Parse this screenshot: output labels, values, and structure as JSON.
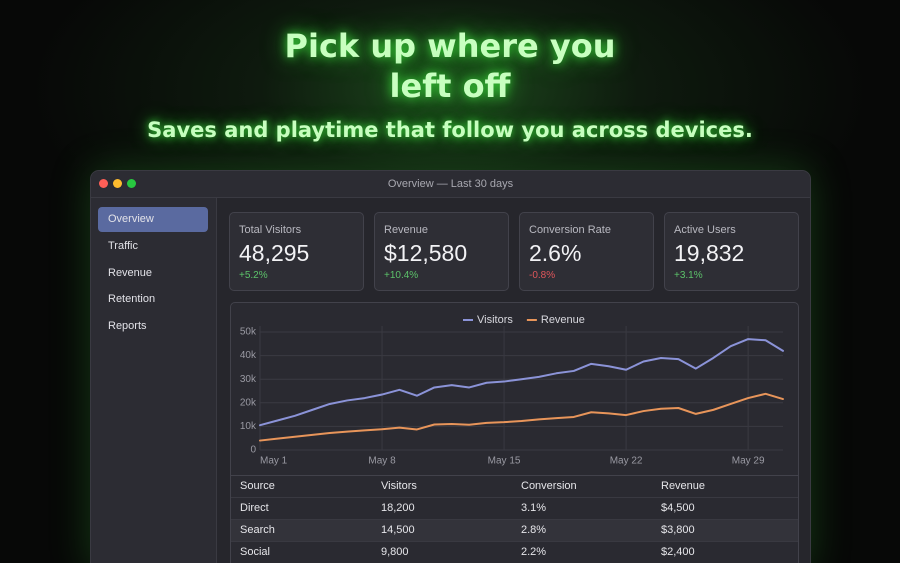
{
  "hero": {
    "title": "Pick up where you left off",
    "subtitle": "Saves and playtime that follow you across devices."
  },
  "window": {
    "title": "Overview — Last 30 days"
  },
  "sidebar": {
    "items": [
      "Overview",
      "Traffic",
      "Revenue",
      "Retention",
      "Reports"
    ]
  },
  "kpis": [
    {
      "label": "Total Visitors",
      "value": "48,295",
      "change": "+5.2%"
    },
    {
      "label": "Revenue",
      "value": "$12,580",
      "change": "+10.4%"
    },
    {
      "label": "Conversion Rate",
      "value": "2.6%",
      "change": "-0.8%"
    },
    {
      "label": "Active Users",
      "value": "19,832",
      "change": "+3.1%"
    }
  ],
  "chart_data": {
    "type": "line",
    "categories": [
      "May 1",
      null,
      null,
      null,
      null,
      null,
      null,
      "May 8",
      null,
      null,
      null,
      null,
      null,
      null,
      "May 15",
      null,
      null,
      null,
      null,
      null,
      null,
      "May 22",
      null,
      null,
      null,
      null,
      null,
      null,
      "May 29",
      null,
      null
    ],
    "series": [
      {
        "name": "Visitors",
        "color": "#8b93d8",
        "values": [
          10500,
          12500,
          14500,
          17000,
          19500,
          21000,
          22000,
          23500,
          25500,
          23000,
          26500,
          27500,
          26500,
          28500,
          29000,
          30000,
          31000,
          32500,
          33500,
          36500,
          35500,
          34000,
          37500,
          39000,
          38500,
          34500,
          39000,
          44000,
          47000,
          46500,
          42000
        ]
      },
      {
        "name": "Revenue",
        "color": "#e8955a",
        "values": [
          4000,
          4800,
          5600,
          6400,
          7200,
          7800,
          8300,
          8800,
          9500,
          8700,
          10800,
          11000,
          10700,
          11500,
          11800,
          12300,
          13000,
          13500,
          14000,
          16000,
          15500,
          14800,
          16500,
          17500,
          17800,
          15300,
          17000,
          19500,
          22000,
          23800,
          21600
        ]
      }
    ],
    "ylim": [
      0,
      50000
    ],
    "yticks": [
      0,
      {
        "value": 10000,
        "label": "10k"
      },
      {
        "value": 20000,
        "label": "20k"
      },
      {
        "value": 30000,
        "label": "30k"
      },
      {
        "value": 40000,
        "label": "40k"
      },
      {
        "value": 50000,
        "label": "50k"
      }
    ],
    "grid": true
  },
  "table": {
    "columns": [
      "Source",
      "Visitors",
      "Conversion",
      "Revenue"
    ],
    "rows": [
      [
        "Direct",
        "18,200",
        "3.1%",
        "$4,500"
      ],
      [
        "Search",
        "14,500",
        "2.8%",
        "$3,800"
      ],
      [
        "Social",
        "9,800",
        "2.2%",
        "$2,400"
      ]
    ]
  }
}
